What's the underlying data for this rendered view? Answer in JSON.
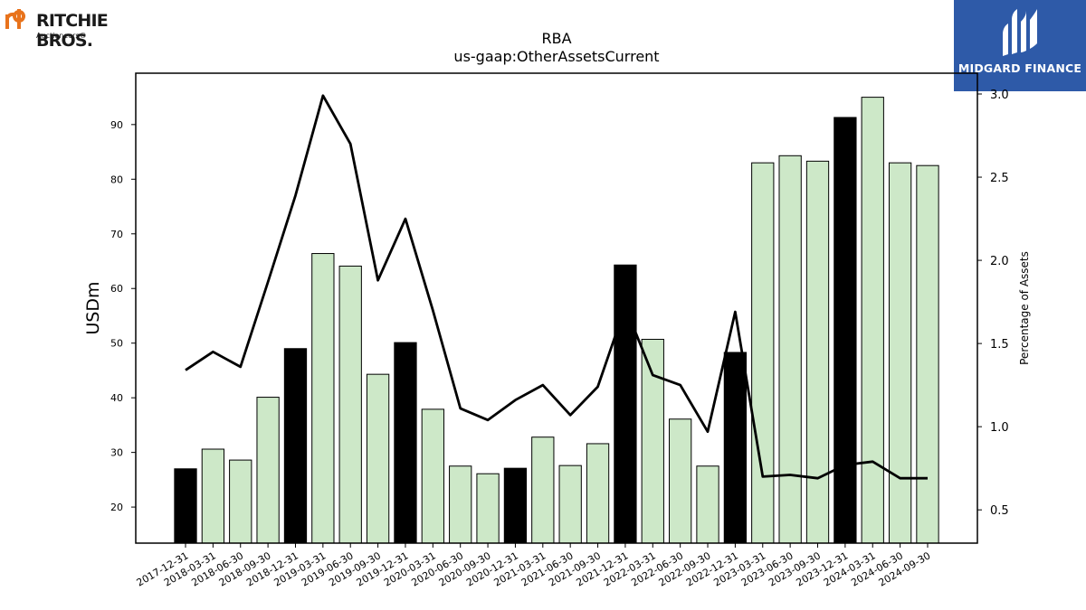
{
  "logos": {
    "left": {
      "name": "RITCHIE BROS.",
      "sub": "Auctioneers®",
      "color": "#e8731c"
    },
    "right": {
      "name": "MIDGARD FINANCE",
      "bg": "#2e5aa8"
    }
  },
  "chart_data": {
    "type": "bar",
    "title": "RBA",
    "subtitle": "us-gaap:OtherAssetsCurrent",
    "ylabel": "USDm",
    "y2label": "Percentage of Assets",
    "ylim": [
      13.4,
      99.4
    ],
    "y2lim": [
      0.3,
      3.125
    ],
    "yticks": [
      20,
      30,
      40,
      50,
      60,
      70,
      80,
      90
    ],
    "y2ticks": [
      0.5,
      1.0,
      1.5,
      2.0,
      2.5,
      3.0
    ],
    "y2tick_labels": [
      "0.5",
      "1.0",
      "1.5",
      "2.0",
      "2.5",
      "3.0"
    ],
    "grid": false,
    "categories": [
      "2017-12-31",
      "2018-03-31",
      "2018-06-30",
      "2018-09-30",
      "2018-12-31",
      "2019-03-31",
      "2019-06-30",
      "2019-09-30",
      "2019-12-31",
      "2020-03-31",
      "2020-06-30",
      "2020-09-30",
      "2020-12-31",
      "2021-03-31",
      "2021-06-30",
      "2021-09-30",
      "2021-12-31",
      "2022-03-31",
      "2022-06-30",
      "2022-09-30",
      "2022-12-31",
      "2023-03-31",
      "2023-06-30",
      "2023-09-30",
      "2023-12-31",
      "2024-03-31",
      "2024-06-30",
      "2024-09-30"
    ],
    "values": [
      27.0,
      30.6,
      28.6,
      40.1,
      49.0,
      66.4,
      64.1,
      44.3,
      50.1,
      37.9,
      27.5,
      26.1,
      27.1,
      32.8,
      27.6,
      31.6,
      64.3,
      50.7,
      36.1,
      27.5,
      48.3,
      83.0,
      84.3,
      83.3,
      91.3,
      95.0,
      83.0,
      82.5
    ],
    "bar_colors": {
      "q4": "#000000",
      "other": "#cde8c8"
    },
    "series": [
      {
        "name": "Percentage of Assets",
        "axis": "right",
        "values": [
          1.34,
          1.45,
          1.36,
          1.87,
          2.39,
          2.99,
          2.7,
          1.88,
          2.25,
          1.7,
          1.11,
          1.04,
          1.16,
          1.25,
          1.07,
          1.24,
          1.72,
          1.31,
          1.25,
          0.97,
          1.69,
          0.7,
          0.71,
          0.69,
          0.77,
          0.79,
          0.69,
          0.69
        ]
      }
    ]
  }
}
